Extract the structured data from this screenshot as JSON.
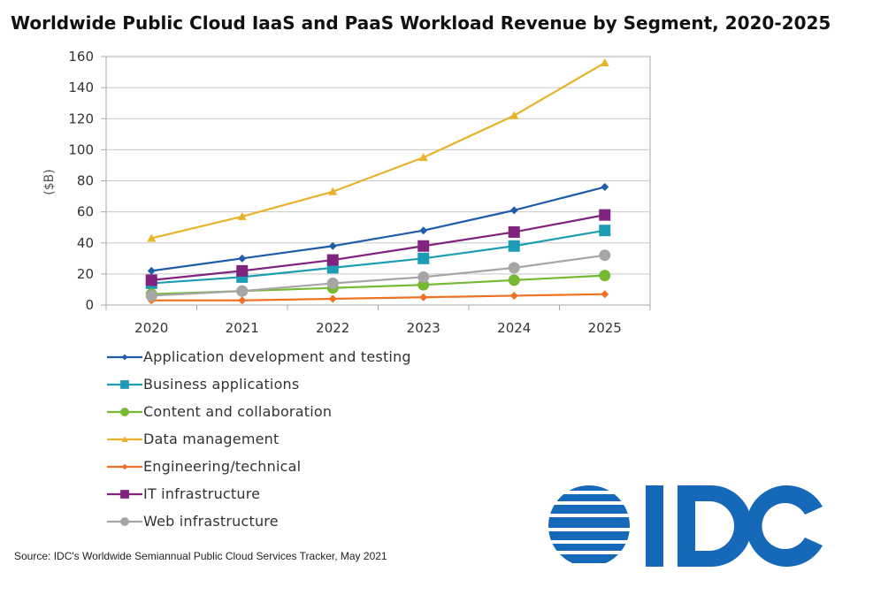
{
  "colors": {
    "grid": "#c8c8c8",
    "axis": "#a8a8a8",
    "logo": "#1668b8"
  },
  "logo": {
    "name": "idc-logo",
    "text": "IDC"
  },
  "source": "Source: IDC's Worldwide Semiannual Public Cloud Services Tracker, May 2021",
  "chart_data": {
    "type": "line",
    "title": "Worldwide Public Cloud IaaS and PaaS Workload Revenue by Segment, 2020-2025",
    "ylabel": "($B)",
    "xlabel": "",
    "ylim": [
      0,
      160
    ],
    "yticks": [
      "0",
      "20",
      "40",
      "60",
      "80",
      "100",
      "120",
      "140",
      "160"
    ],
    "categories": [
      "2020",
      "2021",
      "2022",
      "2023",
      "2024",
      "2025"
    ],
    "grid": true,
    "legend_position": "bottom",
    "series": [
      {
        "name": "Application development and testing",
        "color": "#1f5da8",
        "marker": "diamond",
        "values": [
          22,
          30,
          38,
          48,
          61,
          76
        ]
      },
      {
        "name": "Business applications",
        "color": "#1c9db4",
        "marker": "square",
        "values": [
          14,
          18,
          24,
          30,
          38,
          48
        ]
      },
      {
        "name": "Content and collaboration",
        "color": "#76b933",
        "marker": "circle",
        "values": [
          7,
          9,
          11,
          13,
          16,
          19
        ]
      },
      {
        "name": "Data management",
        "color": "#e8b22a",
        "marker": "triangle",
        "values": [
          43,
          57,
          73,
          95,
          122,
          156
        ]
      },
      {
        "name": "Engineering/technical",
        "color": "#ef7124",
        "marker": "diamond",
        "values": [
          3,
          3,
          4,
          5,
          6,
          7
        ]
      },
      {
        "name": "IT infrastructure",
        "color": "#80237e",
        "marker": "square",
        "values": [
          16,
          22,
          29,
          38,
          47,
          58
        ]
      },
      {
        "name": "Web infrastructure",
        "color": "#a6a6a6",
        "marker": "circle",
        "values": [
          6,
          9,
          14,
          18,
          24,
          32
        ]
      }
    ]
  }
}
